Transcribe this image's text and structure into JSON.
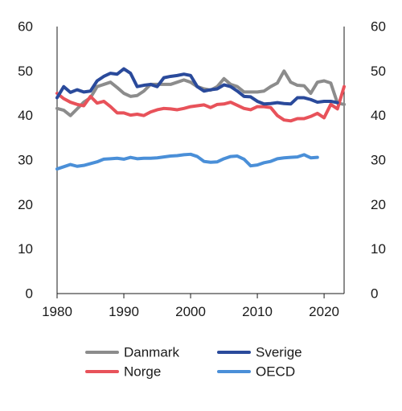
{
  "chart_data": {
    "type": "line",
    "title": "",
    "xlabel": "",
    "ylabel": "",
    "xlim": [
      1980,
      2023
    ],
    "ylim": [
      0,
      60
    ],
    "grid": false,
    "dual_y_axis": true,
    "x_ticks": [
      1980,
      1990,
      2000,
      2010,
      2020
    ],
    "y_ticks": [
      0,
      10,
      20,
      30,
      40,
      50,
      60
    ],
    "legend_position": "bottom",
    "series": [
      {
        "name": "Danmark",
        "color": "#8c8c8c",
        "x": [
          1980,
          1981,
          1982,
          1983,
          1984,
          1985,
          1986,
          1987,
          1988,
          1989,
          1990,
          1991,
          1992,
          1993,
          1994,
          1995,
          1996,
          1997,
          1998,
          1999,
          2000,
          2001,
          2002,
          2003,
          2004,
          2005,
          2006,
          2007,
          2008,
          2009,
          2010,
          2011,
          2012,
          2013,
          2014,
          2015,
          2016,
          2017,
          2018,
          2019,
          2020,
          2021,
          2022,
          2023
        ],
        "y": [
          41.6,
          41.2,
          40.0,
          41.5,
          43.0,
          44.0,
          46.5,
          47.0,
          47.5,
          46.3,
          45.0,
          44.3,
          44.5,
          45.5,
          47.0,
          47.0,
          47.0,
          47.0,
          47.5,
          48.0,
          47.5,
          46.5,
          46.0,
          45.7,
          46.5,
          48.3,
          47.0,
          46.5,
          45.3,
          45.3,
          45.3,
          45.5,
          46.5,
          47.3,
          50.0,
          47.5,
          46.8,
          46.7,
          45.0,
          47.5,
          47.8,
          47.3,
          42.8,
          42.5
        ]
      },
      {
        "name": "Norge",
        "color": "#e8525a",
        "x": [
          1980,
          1981,
          1982,
          1983,
          1984,
          1985,
          1986,
          1987,
          1988,
          1989,
          1990,
          1991,
          1992,
          1993,
          1994,
          1995,
          1996,
          1997,
          1998,
          1999,
          2000,
          2001,
          2002,
          2003,
          2004,
          2005,
          2006,
          2007,
          2008,
          2009,
          2010,
          2011,
          2012,
          2013,
          2014,
          2015,
          2016,
          2017,
          2018,
          2019,
          2020,
          2021,
          2022,
          2023
        ],
        "y": [
          45.0,
          43.8,
          43.0,
          42.5,
          42.2,
          44.3,
          42.8,
          43.2,
          42.0,
          40.6,
          40.6,
          40.1,
          40.3,
          40.0,
          40.8,
          41.3,
          41.6,
          41.5,
          41.3,
          41.6,
          42.0,
          42.2,
          42.4,
          41.8,
          42.5,
          42.6,
          43.0,
          42.3,
          41.6,
          41.3,
          42.0,
          42.0,
          41.8,
          40.0,
          39.0,
          38.8,
          39.3,
          39.3,
          39.8,
          40.5,
          39.5,
          42.5,
          41.5,
          46.5
        ]
      },
      {
        "name": "Sverige",
        "color": "#2a4a9b",
        "x": [
          1980,
          1981,
          1982,
          1983,
          1984,
          1985,
          1986,
          1987,
          1988,
          1989,
          1990,
          1991,
          1992,
          1993,
          1994,
          1995,
          1996,
          1997,
          1998,
          1999,
          2000,
          2001,
          2002,
          2003,
          2004,
          2005,
          2006,
          2007,
          2008,
          2009,
          2010,
          2011,
          2012,
          2013,
          2014,
          2015,
          2016,
          2017,
          2018,
          2019,
          2020,
          2021,
          2022,
          2023
        ],
        "y": [
          44.0,
          46.5,
          45.2,
          45.8,
          45.3,
          45.5,
          47.8,
          48.8,
          49.5,
          49.3,
          50.5,
          49.5,
          46.5,
          46.8,
          47.0,
          46.5,
          48.5,
          48.8,
          49.0,
          49.3,
          49.0,
          46.5,
          45.5,
          45.8,
          46.0,
          46.9,
          46.5,
          45.5,
          44.3,
          44.2,
          43.2,
          42.6,
          42.7,
          42.9,
          42.7,
          42.6,
          44.0,
          44.0,
          43.6,
          43.0,
          43.2,
          43.2,
          42.9,
          null
        ]
      },
      {
        "name": "OECD",
        "color": "#4a8fd8",
        "x": [
          1980,
          1981,
          1982,
          1983,
          1984,
          1985,
          1986,
          1987,
          1988,
          1989,
          1990,
          1991,
          1992,
          1993,
          1994,
          1995,
          1996,
          1997,
          1998,
          1999,
          2000,
          2001,
          2002,
          2003,
          2004,
          2005,
          2006,
          2007,
          2008,
          2009,
          2010,
          2011,
          2012,
          2013,
          2014,
          2015,
          2016,
          2017,
          2018,
          2019
        ],
        "y": [
          28.0,
          28.5,
          29.0,
          28.6,
          28.8,
          29.2,
          29.6,
          30.2,
          30.3,
          30.4,
          30.2,
          30.6,
          30.3,
          30.4,
          30.4,
          30.5,
          30.7,
          30.9,
          31.0,
          31.2,
          31.3,
          30.8,
          29.7,
          29.5,
          29.6,
          30.3,
          30.8,
          30.9,
          30.2,
          28.7,
          28.9,
          29.4,
          29.7,
          30.3,
          30.5,
          30.6,
          30.7,
          31.2,
          30.5,
          30.6
        ]
      }
    ]
  }
}
